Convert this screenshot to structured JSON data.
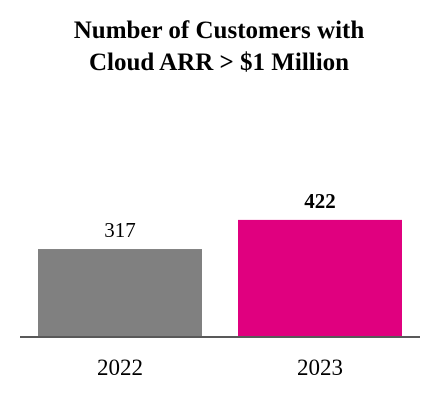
{
  "chart_data": {
    "type": "bar",
    "title_lines": [
      "Number of Customers with",
      "Cloud ARR > $1 Million"
    ],
    "categories": [
      "2022",
      "2023"
    ],
    "values": [
      317,
      422
    ],
    "value_labels": [
      "317",
      "422"
    ],
    "value_label_bold": [
      false,
      true
    ],
    "colors": [
      "#808080",
      "#E0007F"
    ],
    "axis_color": "#595959",
    "xlabel": "",
    "ylabel": "",
    "ylim": [
      0,
      560
    ],
    "grid": false,
    "legend": "none"
  }
}
